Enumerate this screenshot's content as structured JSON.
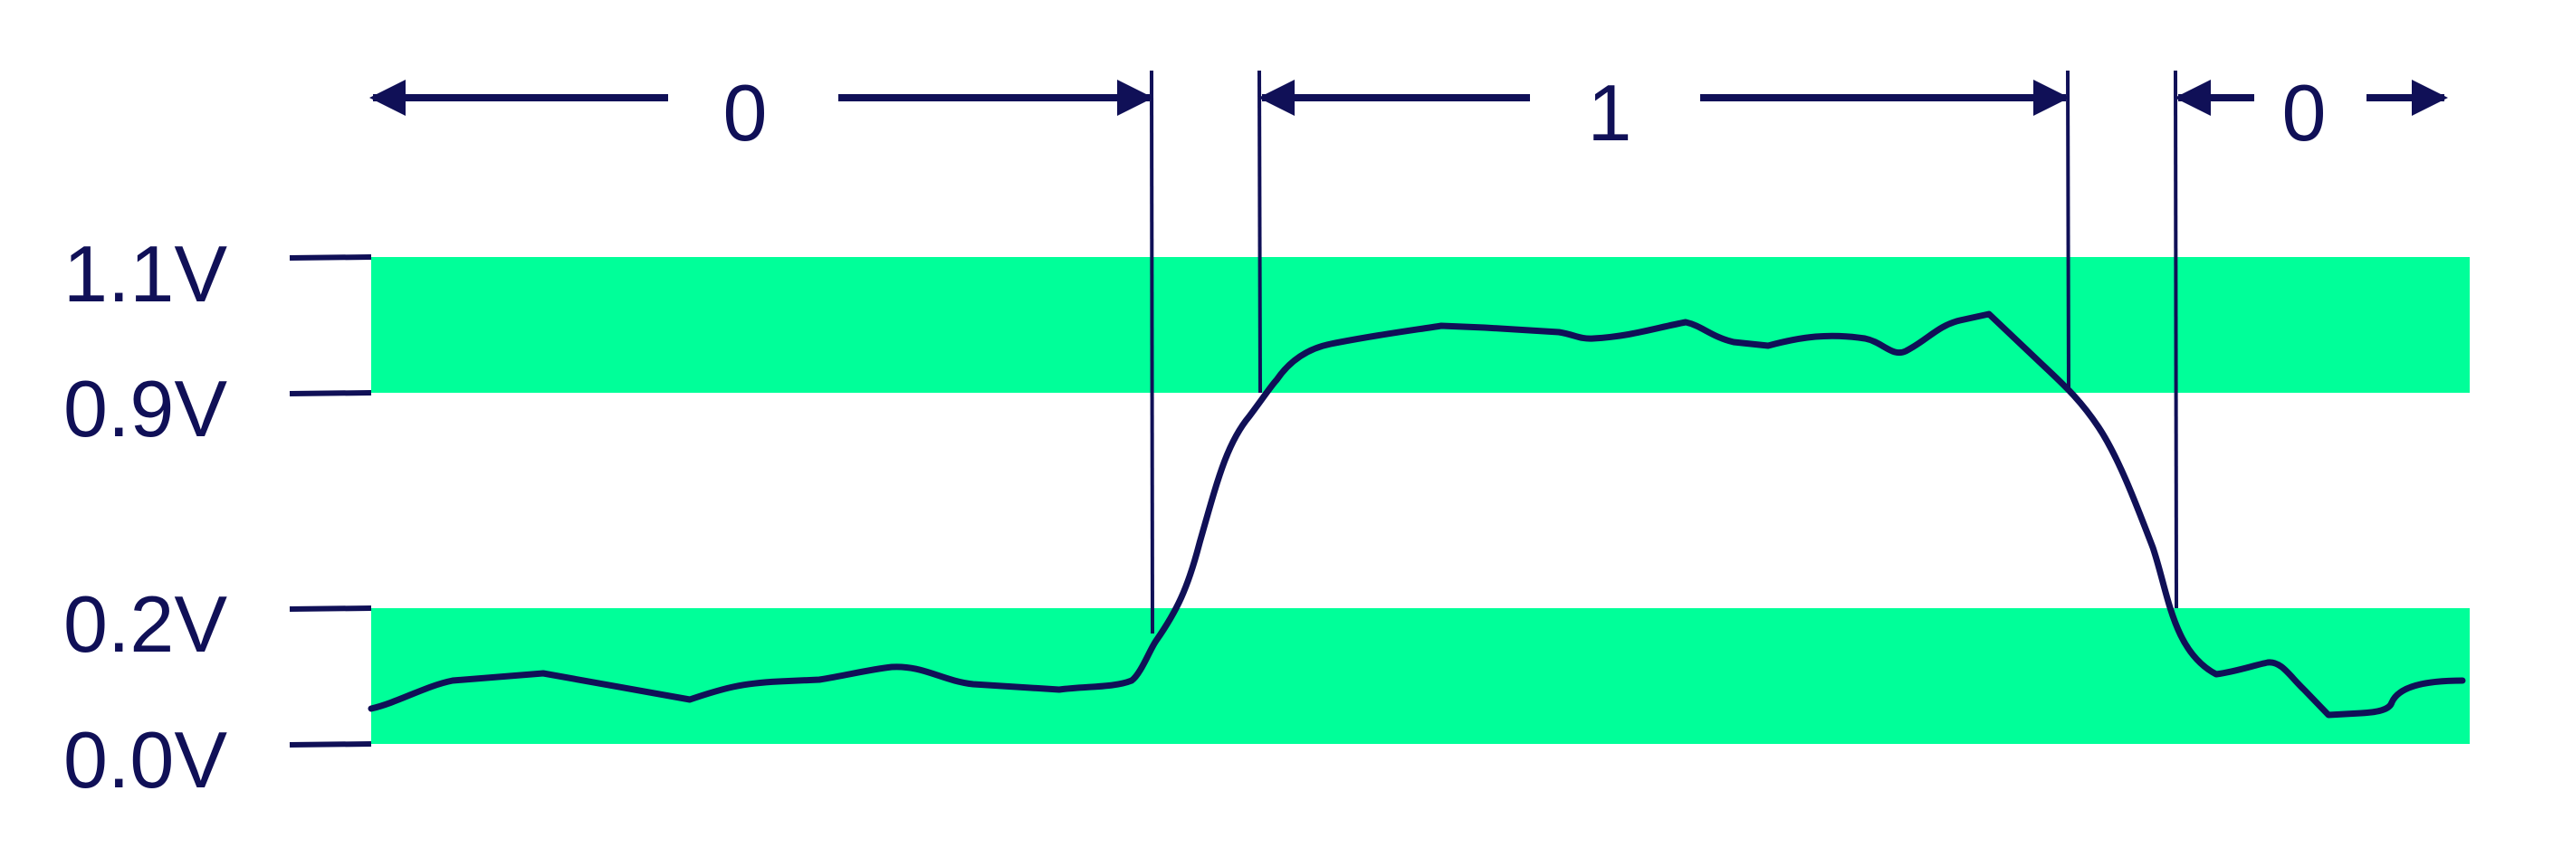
{
  "colors": {
    "band": "#00FF99",
    "ink": "#101057",
    "background": "#FFFFFF"
  },
  "voltage_labels": {
    "v_high_max": "1.1V",
    "v_high_min": "0.9V",
    "v_low_max": "0.2V",
    "v_low_min": "0.0V"
  },
  "logic_labels": {
    "left_zero": "0",
    "middle_one": "1",
    "right_zero": "0"
  },
  "bands": {
    "high": {
      "from_v": 0.9,
      "to_v": 1.1
    },
    "low": {
      "from_v": 0.0,
      "to_v": 0.2
    }
  }
}
